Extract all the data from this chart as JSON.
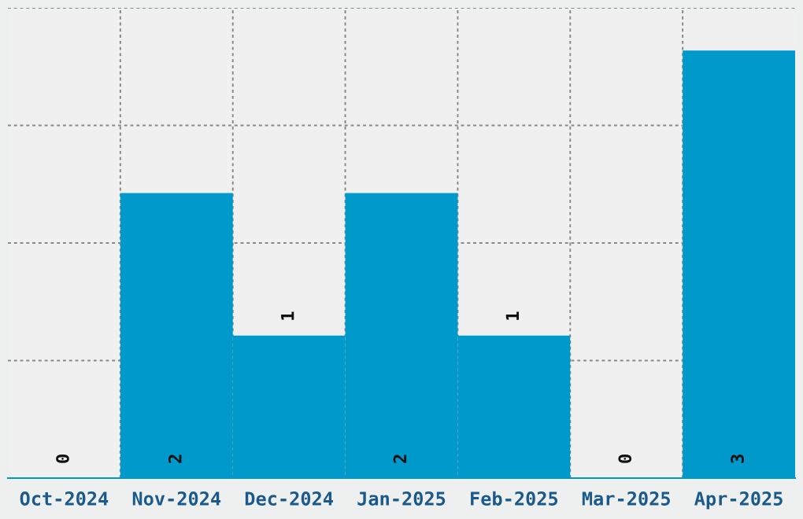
{
  "chart_data": {
    "type": "bar",
    "categories": [
      "Oct-2024",
      "Nov-2024",
      "Dec-2024",
      "Jan-2025",
      "Feb-2025",
      "Mar-2025",
      "Apr-2025"
    ],
    "values": [
      0,
      2,
      1,
      2,
      1,
      0,
      3
    ],
    "color": "#0099cc",
    "ylim": [
      0,
      3.3
    ],
    "yticks": [
      {
        "value": 0,
        "label": null
      },
      {
        "value": 0.825,
        "label": null
      },
      {
        "value": 1.65,
        "label": null
      },
      {
        "value": 2.475,
        "label": null
      },
      {
        "value": 3.3,
        "label": null
      }
    ],
    "tick_labels": "x",
    "grid": true,
    "data_labels": true
  }
}
